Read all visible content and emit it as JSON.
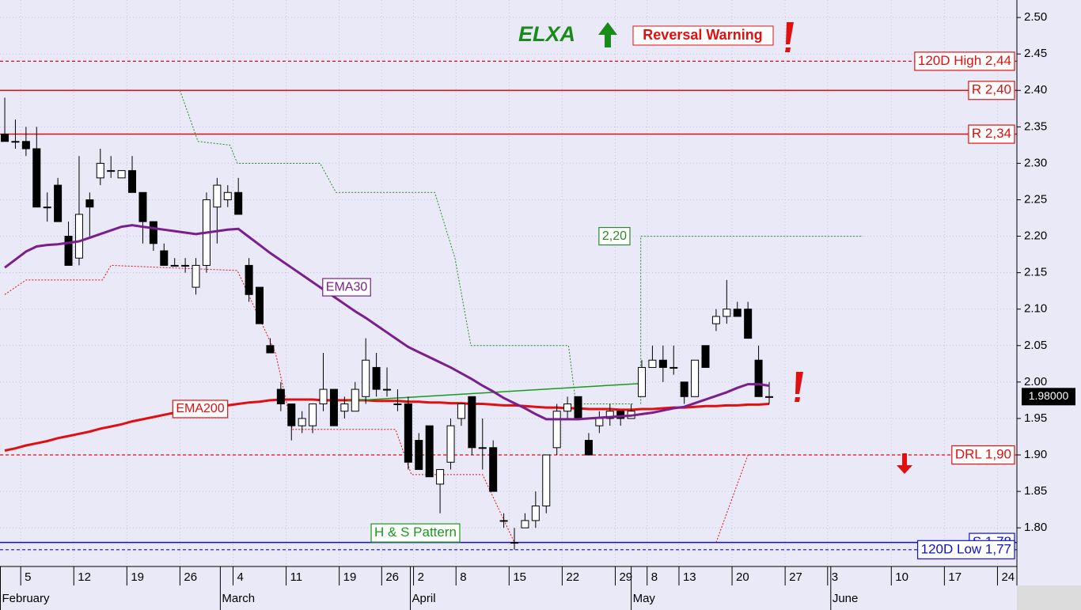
{
  "chart_data": {
    "type": "candlestick",
    "title": "ELXA",
    "signal": "Reversal Warning",
    "pattern_label": "H & S Pattern",
    "grid": true,
    "xlim": [
      -0.45,
      95.33
    ],
    "ylim": [
      1.747,
      2.524
    ],
    "yticks": [
      {
        "value": 1.8,
        "label": "1.80"
      },
      1.85,
      {
        "value": 1.9,
        "label": "1.90"
      },
      1.95,
      {
        "value": 2.0,
        "label": "2.00"
      },
      2.05,
      {
        "value": 2.1,
        "label": "2.10"
      },
      2.15,
      {
        "value": 2.2,
        "label": "2.20"
      },
      2.25,
      {
        "value": 2.3,
        "label": "2.30"
      },
      2.35,
      {
        "value": 2.4,
        "label": "2.40"
      },
      2.45,
      {
        "value": 2.5,
        "label": "2.50"
      }
    ],
    "xticks": [
      {
        "value": 2,
        "label": "5"
      },
      {
        "value": 7,
        "label": "12"
      },
      {
        "value": 12,
        "label": "19"
      },
      {
        "value": 17,
        "label": "26"
      },
      {
        "value": 22,
        "label": "4"
      },
      {
        "value": 27,
        "label": "11"
      },
      {
        "value": 32,
        "label": "19"
      },
      {
        "value": 36,
        "label": "26"
      },
      {
        "value": 39,
        "label": "2"
      },
      {
        "value": 43,
        "label": "8"
      },
      {
        "value": 48,
        "label": "15"
      },
      {
        "value": 53,
        "label": "22"
      },
      {
        "value": 58,
        "label": "29"
      },
      {
        "value": 61,
        "label": "8"
      },
      {
        "value": 64,
        "label": "13"
      },
      {
        "value": 69,
        "label": "20"
      },
      {
        "value": 74,
        "label": "27"
      },
      {
        "value": 78,
        "label": "3"
      },
      {
        "value": 84,
        "label": "10"
      },
      {
        "value": 89,
        "label": "17"
      },
      {
        "value": 94,
        "label": "24"
      }
    ],
    "months": [
      {
        "value": -0.45,
        "label": "February"
      },
      {
        "value": 20.3,
        "label": "March"
      },
      {
        "value": 38.2,
        "label": "April"
      },
      {
        "value": 59,
        "label": "May"
      },
      {
        "value": 77.8,
        "label": "June"
      }
    ],
    "open": [
      2.34,
      2.33,
      2.33,
      2.32,
      2.24,
      2.27,
      2.2,
      2.17,
      2.25,
      2.28,
      2.29,
      2.28,
      2.29,
      2.26,
      2.22,
      2.18,
      2.16,
      2.16,
      2.13,
      2.16,
      2.24,
      2.25,
      2.26,
      2.16,
      2.13,
      2.05,
      1.99,
      1.97,
      1.94,
      1.94,
      1.97,
      1.99,
      1.96,
      1.96,
      1.98,
      2.02,
      1.99,
      1.97,
      1.97,
      1.92,
      1.94,
      1.86,
      1.89,
      1.95,
      1.98,
      1.91,
      1.91,
      1.81,
      1.78,
      1.8,
      1.81,
      1.83,
      1.91,
      1.96,
      1.98,
      1.92,
      1.94,
      1.95,
      1.96,
      1.95,
      1.98,
      2.02,
      2.03,
      2.02,
      2.0,
      1.98,
      2.05,
      2.08,
      2.09,
      2.1,
      2.1,
      2.03,
      1.98
    ],
    "high": [
      2.39,
      2.36,
      2.35,
      2.35,
      2.26,
      2.28,
      2.22,
      2.31,
      2.26,
      2.32,
      2.31,
      2.29,
      2.31,
      2.26,
      2.22,
      2.19,
      2.17,
      2.17,
      2.17,
      2.26,
      2.28,
      2.27,
      2.28,
      2.17,
      2.13,
      2.06,
      2.0,
      1.97,
      1.96,
      1.97,
      2.04,
      1.99,
      1.98,
      2.0,
      2.06,
      2.04,
      2.02,
      1.99,
      1.98,
      1.93,
      1.94,
      1.88,
      1.95,
      1.97,
      1.98,
      1.95,
      1.92,
      1.82,
      1.8,
      1.82,
      1.85,
      1.9,
      1.97,
      1.98,
      1.98,
      1.93,
      1.96,
      1.97,
      1.96,
      1.97,
      2.03,
      2.05,
      2.05,
      2.05,
      2.0,
      2.03,
      2.05,
      2.1,
      2.14,
      2.11,
      2.11,
      2.05,
      2.0
    ],
    "low": [
      2.33,
      2.32,
      2.31,
      2.24,
      2.22,
      2.22,
      2.16,
      2.16,
      2.2,
      2.27,
      2.28,
      2.28,
      2.26,
      2.19,
      2.18,
      2.16,
      2.16,
      2.15,
      2.12,
      2.15,
      2.19,
      2.24,
      2.23,
      2.11,
      2.08,
      2.04,
      1.96,
      1.92,
      1.93,
      1.93,
      1.96,
      1.94,
      1.95,
      1.96,
      1.97,
      1.98,
      1.98,
      1.96,
      1.88,
      1.88,
      1.87,
      1.82,
      1.88,
      1.94,
      1.9,
      1.88,
      1.85,
      1.8,
      1.77,
      1.8,
      1.8,
      1.82,
      1.9,
      1.95,
      1.95,
      1.9,
      1.93,
      1.94,
      1.94,
      1.95,
      1.98,
      2.02,
      2.0,
      2.01,
      1.97,
      1.98,
      2.02,
      2.07,
      2.08,
      2.09,
      2.06,
      1.98,
      1.97
    ],
    "close": [
      2.33,
      2.33,
      2.32,
      2.24,
      2.24,
      2.22,
      2.16,
      2.23,
      2.24,
      2.3,
      2.29,
      2.29,
      2.26,
      2.22,
      2.19,
      2.16,
      2.16,
      2.16,
      2.16,
      2.25,
      2.27,
      2.26,
      2.23,
      2.12,
      2.08,
      2.04,
      1.97,
      1.94,
      1.95,
      1.97,
      1.99,
      1.94,
      1.97,
      1.99,
      2.03,
      1.99,
      1.99,
      1.97,
      1.89,
      1.88,
      1.87,
      1.88,
      1.94,
      1.97,
      1.91,
      1.91,
      1.85,
      1.81,
      1.78,
      1.81,
      1.83,
      1.9,
      1.96,
      1.97,
      1.95,
      1.9,
      1.95,
      1.96,
      1.95,
      1.96,
      2.02,
      2.03,
      2.02,
      2.02,
      1.98,
      2.03,
      2.02,
      2.09,
      2.1,
      2.09,
      2.06,
      1.98,
      1.98
    ],
    "lines": [
      {
        "name": "EMA30",
        "color": "#7a1f8c",
        "values": [
          2.157,
          2.168,
          2.179,
          2.186,
          2.188,
          2.189,
          2.191,
          2.193,
          2.198,
          2.203,
          2.208,
          2.213,
          2.215,
          2.213,
          2.211,
          2.209,
          2.207,
          2.205,
          2.203,
          2.205,
          2.207,
          2.209,
          2.21,
          2.199,
          2.188,
          2.177,
          2.167,
          2.157,
          2.147,
          2.137,
          2.127,
          2.117,
          2.107,
          2.097,
          2.088,
          2.078,
          2.068,
          2.058,
          2.048,
          2.041,
          2.034,
          2.027,
          2.02,
          2.012,
          2.004,
          1.995,
          1.987,
          1.978,
          1.971,
          1.964,
          1.956,
          1.949,
          1.949,
          1.949,
          1.949,
          1.95,
          1.951,
          1.952,
          1.953,
          1.954,
          1.956,
          1.958,
          1.961,
          1.964,
          1.966,
          1.971,
          1.976,
          1.981,
          1.986,
          1.992,
          1.997,
          1.997,
          1.995
        ]
      },
      {
        "name": "EMA200",
        "color": "#e01010",
        "values": [
          1.906,
          1.909,
          1.913,
          1.916,
          1.919,
          1.923,
          1.926,
          1.929,
          1.932,
          1.936,
          1.939,
          1.942,
          1.946,
          1.949,
          1.952,
          1.955,
          1.958,
          1.96,
          1.962,
          1.964,
          1.966,
          1.968,
          1.97,
          1.972,
          1.973,
          1.975,
          1.976,
          1.976,
          1.976,
          1.976,
          1.975,
          1.975,
          1.975,
          1.975,
          1.975,
          1.974,
          1.974,
          1.974,
          1.973,
          1.973,
          1.972,
          1.972,
          1.971,
          1.971,
          1.97,
          1.97,
          1.969,
          1.968,
          1.968,
          1.967,
          1.966,
          1.965,
          1.965,
          1.964,
          1.964,
          1.963,
          1.963,
          1.963,
          1.962,
          1.962,
          1.963,
          1.963,
          1.964,
          1.965,
          1.965,
          1.966,
          1.967,
          1.967,
          1.968,
          1.968,
          1.969,
          1.969,
          1.97
        ]
      }
    ],
    "stops": [
      {
        "color": "#2a8a2a",
        "x": [
          16.5,
          18.2,
          21.2,
          21.9,
          29.7,
          31.2,
          40.5,
          42.4,
          43.9,
          53.1,
          53.8,
          59.2
        ],
        "values": [
          2.4,
          2.33,
          2.325,
          2.3,
          2.3,
          2.26,
          2.26,
          2.17,
          2.05,
          2.05,
          1.97,
          1.97
        ]
      },
      {
        "color": "#e01010",
        "x": [
          0,
          2,
          9.2,
          10,
          21.9,
          25.5,
          27.1,
          36.8,
          38.3,
          45,
          48,
          null,
          67,
          70
        ],
        "values": [
          2.12,
          2.14,
          2.14,
          2.16,
          2.153,
          2.04,
          1.935,
          1.935,
          1.873,
          1.873,
          1.78,
          null,
          1.78,
          1.9
        ]
      }
    ],
    "neckline": {
      "color": "#1a9a1a",
      "x": [
        32.3,
        59.9
      ],
      "values": [
        1.974,
        1.998
      ]
    },
    "target": {
      "label": "2,20",
      "color": "#2a8a2a",
      "x": [
        59.9,
        59.9,
        80.8
      ],
      "values": [
        1.97,
        2.2,
        2.2
      ]
    },
    "levels": [
      {
        "label": "120D High 2,44",
        "value": 2.44,
        "color": "#e01010",
        "style": "dashed"
      },
      {
        "label": "R 2,40",
        "value": 2.4,
        "color": "#e01010",
        "style": "solid"
      },
      {
        "label": "R 2,34",
        "value": 2.34,
        "color": "#e01010",
        "style": "solid"
      },
      {
        "label": "DRL 1,90",
        "value": 1.9,
        "color": "#e01010",
        "style": "dashed"
      },
      {
        "label": "S 1,78",
        "value": 1.78,
        "color": "#1010d0",
        "style": "solid"
      },
      {
        "label": "120D Low 1,77",
        "value": 1.77,
        "color": "#1010d0",
        "style": "dashed"
      }
    ],
    "last_price": {
      "label": "1.98000",
      "value": 1.98
    }
  }
}
